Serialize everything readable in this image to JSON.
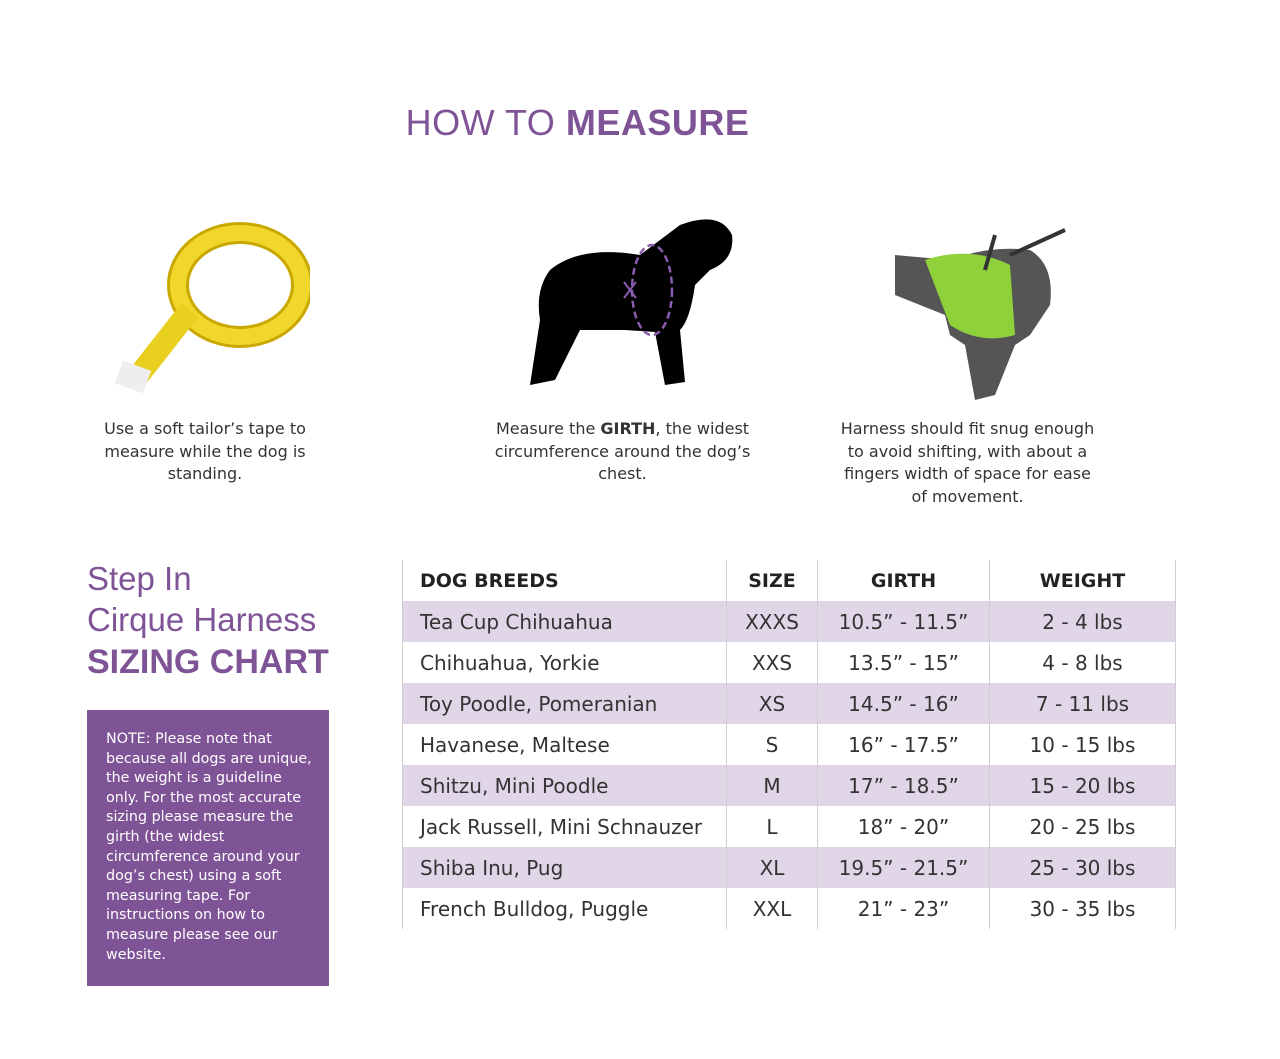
{
  "header": {
    "title_light": "HOW TO ",
    "title_bold": "MEASURE"
  },
  "steps": [
    {
      "icon": "tape-measure-icon",
      "text": "Use a soft tailor’s tape to measure while the dog is standing."
    },
    {
      "icon": "dog-girth-icon",
      "pre": "Measure the ",
      "bold": "GIRTH",
      "post": ", the widest circumference around the dog’s chest."
    },
    {
      "icon": "dog-harness-icon",
      "text": "Harness should fit snug enough to avoid shifting, with about a fingers width of space for ease of movement."
    }
  ],
  "side": {
    "line1": "Step In",
    "line2": "Cirque Harness",
    "line3": "SIZING CHART",
    "note": "NOTE: Please note that because all dogs are unique, the weight is a guideline only. For the most accurate sizing please measure the girth (the widest circumference around your dog’s chest) using a soft measuring tape. For instructions on how to measure please see our website."
  },
  "table": {
    "headers": [
      "DOG BREEDS",
      "SIZE",
      "GIRTH",
      "WEIGHT"
    ],
    "rows": [
      [
        "Tea Cup Chihuahua",
        "XXXS",
        "10.5” - 11.5”",
        "2 - 4 lbs"
      ],
      [
        "Chihuahua, Yorkie",
        "XXS",
        "13.5” - 15”",
        "4 - 8 lbs"
      ],
      [
        "Toy Poodle, Pomeranian",
        "XS",
        "14.5” - 16”",
        "7 - 11 lbs"
      ],
      [
        "Havanese, Maltese",
        "S",
        "16” - 17.5”",
        "10 - 15 lbs"
      ],
      [
        "Shitzu, Mini Poodle",
        "M",
        "17” - 18.5”",
        "15 - 20 lbs"
      ],
      [
        "Jack Russell, Mini Schnauzer",
        "L",
        "18” - 20”",
        "20 - 25 lbs"
      ],
      [
        "Shiba Inu, Pug",
        "XL",
        "19.5” - 21.5”",
        "25 - 30 lbs"
      ],
      [
        "French Bulldog, Puggle",
        "XXL",
        "21” - 23”",
        "30 - 35 lbs"
      ]
    ]
  },
  "colors": {
    "accent": "#7f5497",
    "band": "#e0d6e7"
  }
}
